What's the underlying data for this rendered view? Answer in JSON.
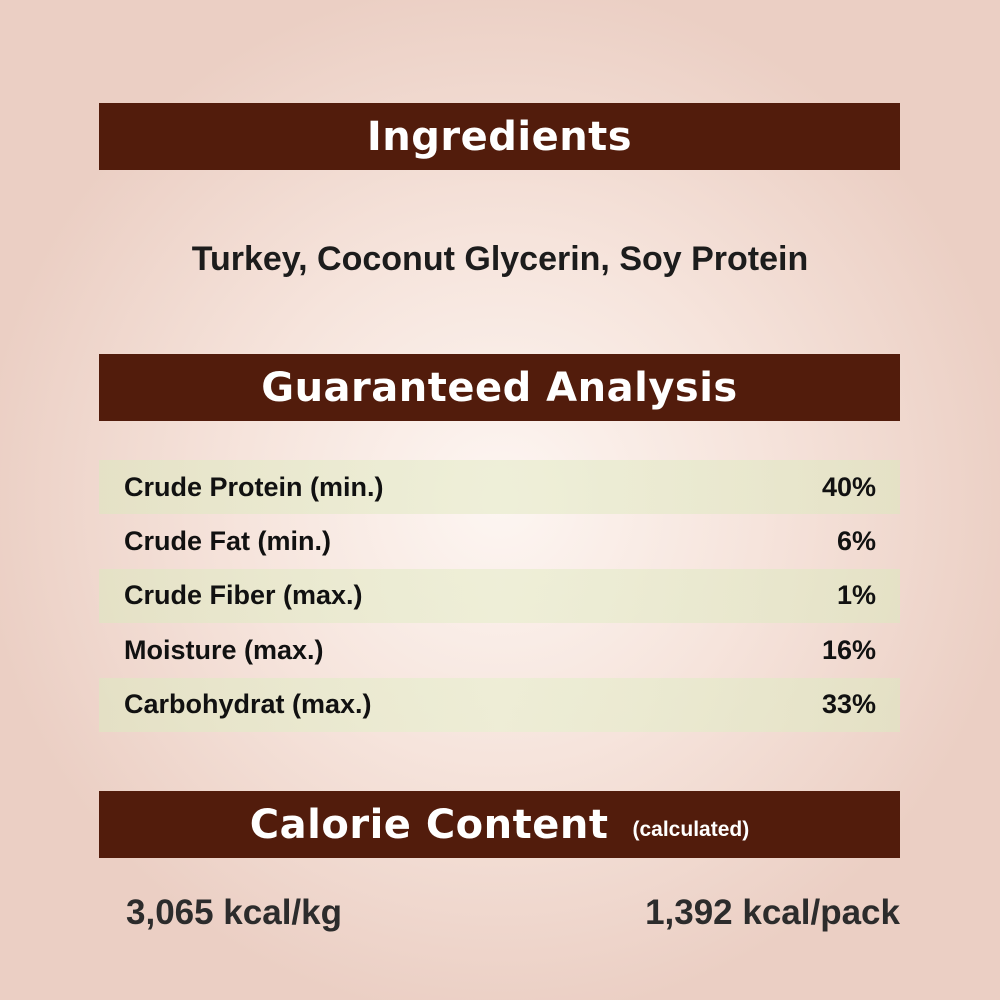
{
  "ingredients": {
    "heading": "Ingredients",
    "text": "Turkey, Coconut Glycerin, Soy Protein"
  },
  "analysis": {
    "heading": "Guaranteed Analysis",
    "rows": [
      {
        "label": "Crude Protein (min.)",
        "value": "40%"
      },
      {
        "label": "Crude Fat (min.)",
        "value": "6%"
      },
      {
        "label": "Crude Fiber (max.)",
        "value": "1%"
      },
      {
        "label": "Moisture (max.)",
        "value": "16%"
      },
      {
        "label": "Carbohydrat (max.)",
        "value": "33%"
      }
    ]
  },
  "calorie": {
    "heading": "Calorie Content",
    "subheading": "(calculated)",
    "per_kg": "3,065 kcal/kg",
    "per_pack": "1,392 kcal/pack"
  },
  "colors": {
    "header_bar": "#521c0c",
    "row_highlight": "#e4e6c6",
    "background": "#f3ddd4"
  }
}
